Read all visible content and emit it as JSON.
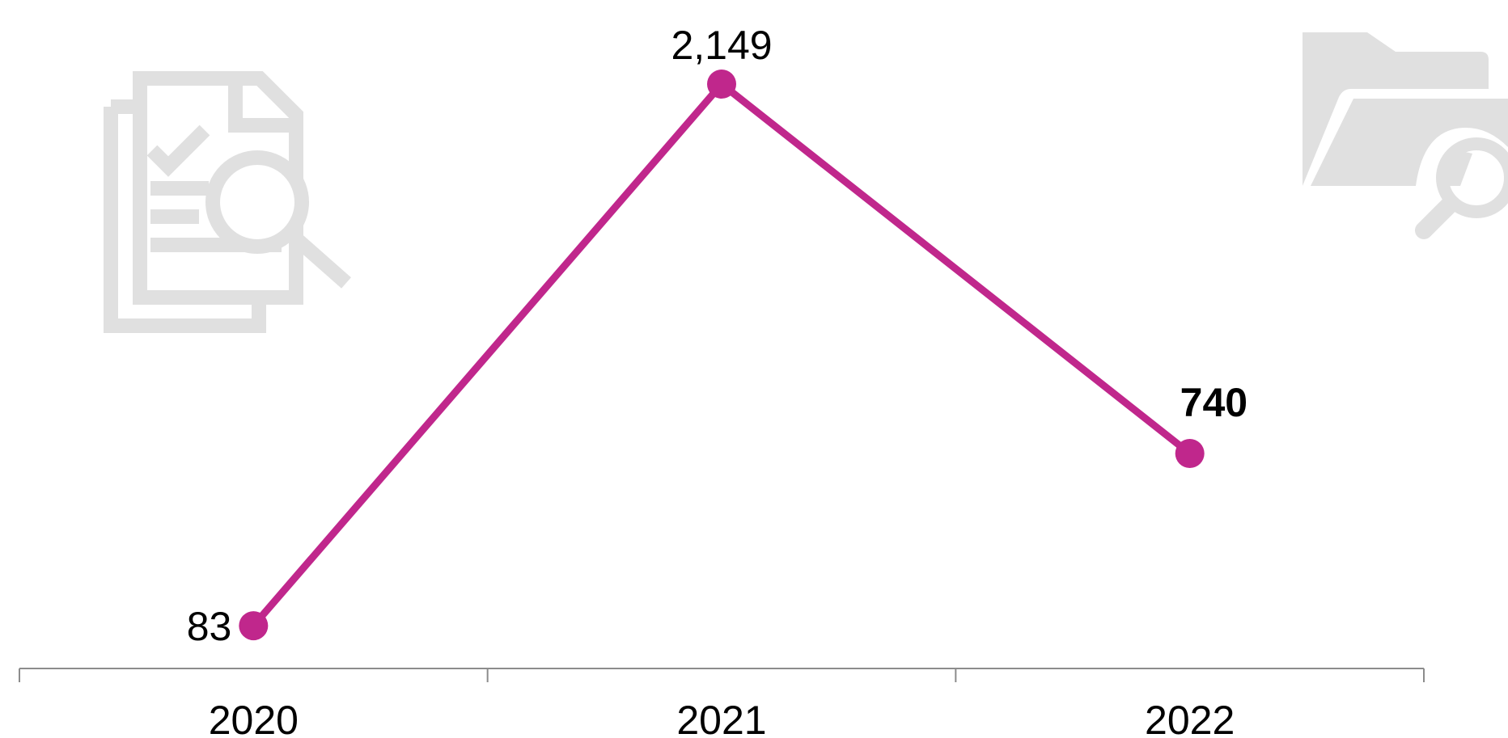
{
  "colors": {
    "series_line": "#C0278C",
    "axis": "#8C8C8C",
    "icon_fill": "#E0E0E0",
    "label_text": "#000000"
  },
  "icons": {
    "left": "document-search-icon",
    "right": "folder-search-icon"
  },
  "chart_data": {
    "type": "line",
    "title": "",
    "xlabel": "",
    "ylabel": "",
    "categories": [
      "2020",
      "2021",
      "2022"
    ],
    "series": [
      {
        "values": [
          83,
          2149,
          740
        ],
        "data_labels": [
          "83",
          "2,149",
          "740"
        ],
        "bold_labels": [
          false,
          false,
          true
        ],
        "label_positions": [
          "left",
          "top",
          "top-right"
        ]
      }
    ],
    "ylim": [
      0,
      2149
    ],
    "grid": false,
    "legend": "none",
    "y_axis_visible": false,
    "markers": true
  }
}
